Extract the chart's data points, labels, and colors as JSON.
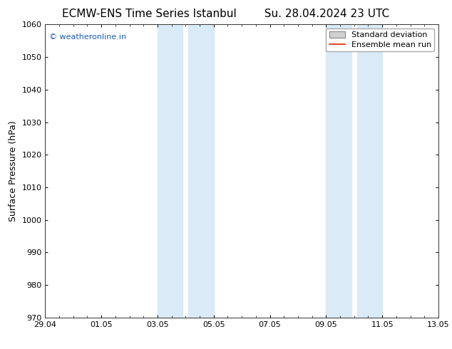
{
  "title_left": "ECMW-ENS Time Series Istanbul",
  "title_right": "Su. 28.04.2024 23 UTC",
  "ylabel": "Surface Pressure (hPa)",
  "ylim": [
    970,
    1060
  ],
  "yticks": [
    970,
    980,
    990,
    1000,
    1010,
    1020,
    1030,
    1040,
    1050,
    1060
  ],
  "xtick_positions": [
    0,
    2,
    4,
    6,
    8,
    10,
    12,
    14
  ],
  "xtick_labels": [
    "29.04",
    "01.05",
    "03.05",
    "05.05",
    "07.05",
    "09.05",
    "11.05",
    "13.05"
  ],
  "shaded_bands": [
    {
      "x_start": 4.0,
      "x_end": 4.9
    },
    {
      "x_start": 5.1,
      "x_end": 6.0
    },
    {
      "x_start": 10.0,
      "x_end": 10.9
    },
    {
      "x_start": 11.1,
      "x_end": 12.0
    }
  ],
  "shaded_color": "#daeaf6",
  "watermark_text": "© weatheronline.in",
  "watermark_color": "#1a5fb4",
  "legend_std_label": "Standard deviation",
  "legend_mean_label": "Ensemble mean run",
  "legend_std_facecolor": "#d0d0d0",
  "legend_std_edgecolor": "#888888",
  "legend_mean_color": "#dd2200",
  "background_color": "#ffffff",
  "plot_bg_color": "#ffffff",
  "title_fontsize": 11,
  "axis_label_fontsize": 9,
  "tick_fontsize": 8,
  "watermark_fontsize": 8,
  "legend_fontsize": 8
}
